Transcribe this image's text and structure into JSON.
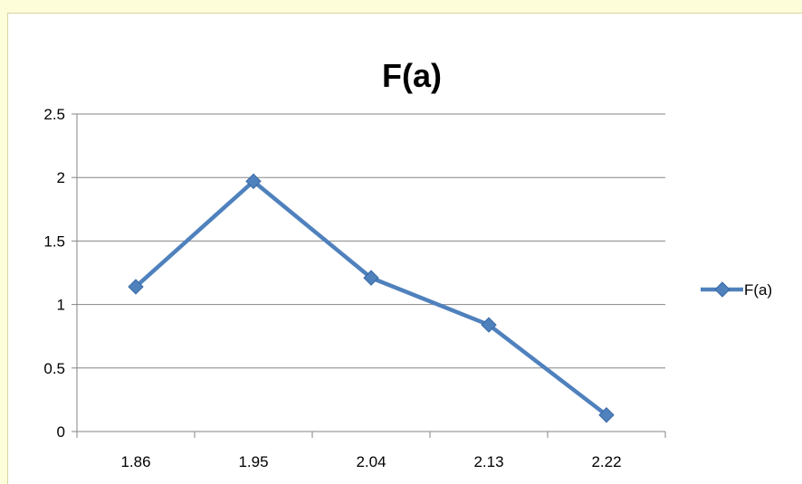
{
  "chart_data": {
    "type": "line",
    "title": "F(a)",
    "categories": [
      "1.86",
      "1.95",
      "2.04",
      "2.13",
      "2.22"
    ],
    "series": [
      {
        "name": "F(a)",
        "values": [
          1.14,
          1.97,
          1.21,
          0.84,
          0.13
        ]
      }
    ],
    "xlabel": "",
    "ylabel": "",
    "ylim": [
      0,
      2.5
    ],
    "yticks": [
      "0",
      "0.5",
      "1",
      "1.5",
      "2",
      "2.5"
    ],
    "grid": true,
    "legend": "right",
    "colors": {
      "series": "#4f81bd",
      "grid": "#868686",
      "background": "#fdfdd9"
    },
    "marker": "diamond"
  }
}
